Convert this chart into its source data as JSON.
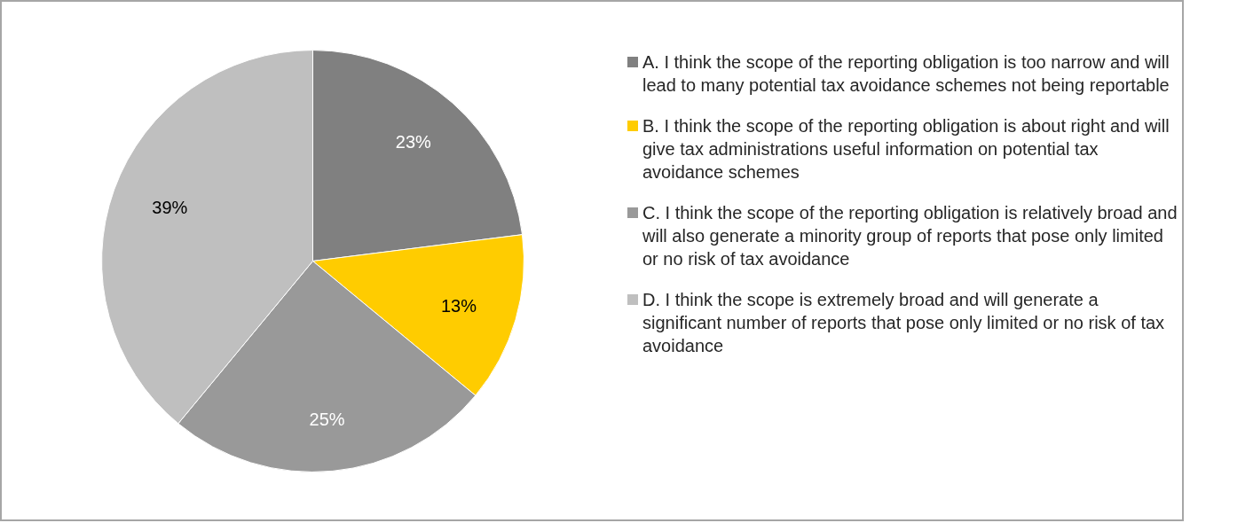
{
  "chart_data": {
    "type": "pie",
    "categories": [
      "A. I think the scope of the reporting obligation is too narrow and will lead to many potential tax avoidance schemes not being reportable",
      "B. I think the scope of the reporting obligation is about right and will give tax administrations useful information on potential tax avoidance schemes",
      "C. I think the scope of the reporting obligation is relatively broad and will also generate a minority group of reports that pose only limited or no risk of tax avoidance",
      "D. I think the scope is extremely broad and will generate a significant number of reports that pose only limited or no risk of tax avoidance"
    ],
    "values": [
      23,
      13,
      25,
      39
    ],
    "colors": [
      "#808080",
      "#ffcc00",
      "#999999",
      "#bfbfbf"
    ],
    "value_labels": [
      "23%",
      "13%",
      "25%",
      "39%"
    ],
    "legend": "right"
  }
}
